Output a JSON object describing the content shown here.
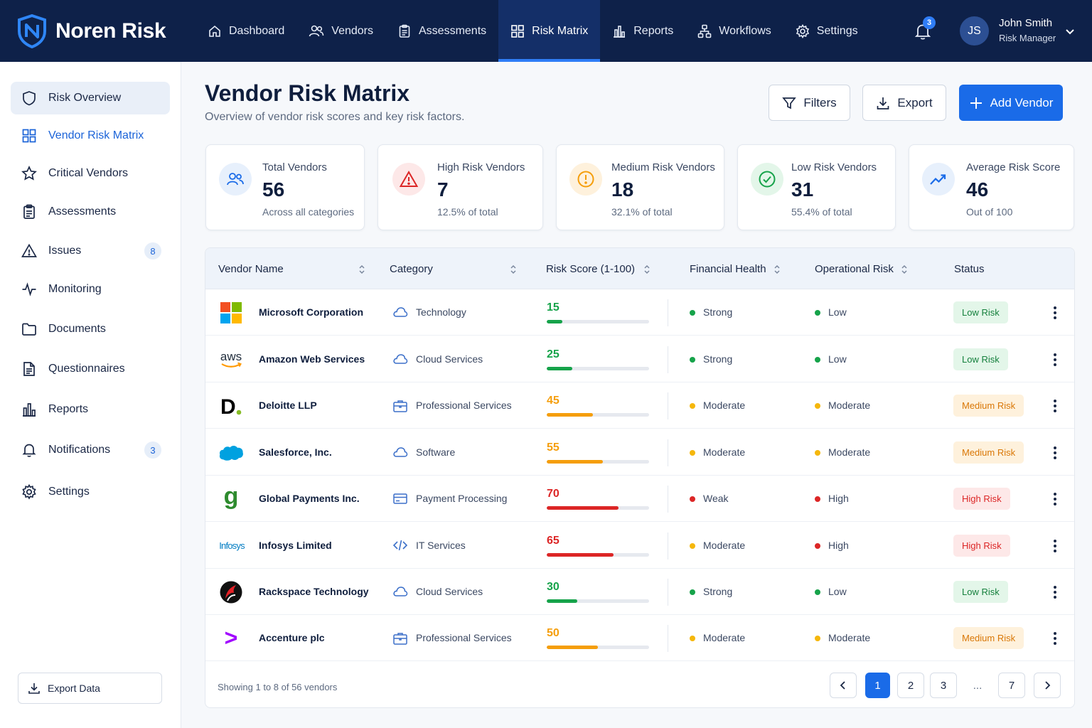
{
  "brand": {
    "name": "Noren Risk"
  },
  "nav": [
    {
      "label": "Dashboard",
      "icon": "home-icon"
    },
    {
      "label": "Vendors",
      "icon": "users-icon"
    },
    {
      "label": "Assessments",
      "icon": "clipboard-icon"
    },
    {
      "label": "Risk Matrix",
      "icon": "grid-icon",
      "active": true
    },
    {
      "label": "Reports",
      "icon": "bar-chart-icon"
    },
    {
      "label": "Workflows",
      "icon": "workflow-icon"
    },
    {
      "label": "Settings",
      "icon": "gear-icon"
    }
  ],
  "notifications": {
    "count": "3"
  },
  "user": {
    "initials": "JS",
    "name": "John Smith",
    "role": "Risk Manager"
  },
  "sidebar": {
    "items": [
      {
        "label": "Risk Overview",
        "icon": "shield-icon"
      },
      {
        "label": "Vendor Risk Matrix",
        "icon": "grid-icon"
      },
      {
        "label": "Critical Vendors",
        "icon": "star-icon"
      },
      {
        "label": "Assessments",
        "icon": "clipboard-icon"
      },
      {
        "label": "Issues",
        "icon": "warning-icon",
        "badge": "8"
      },
      {
        "label": "Monitoring",
        "icon": "activity-icon"
      },
      {
        "label": "Documents",
        "icon": "folder-icon"
      },
      {
        "label": "Questionnaires",
        "icon": "document-icon"
      },
      {
        "label": "Reports",
        "icon": "bar-chart-icon"
      },
      {
        "label": "Notifications",
        "icon": "bell-icon",
        "badge": "3"
      },
      {
        "label": "Settings",
        "icon": "gear-icon"
      }
    ],
    "export_label": "Export Data"
  },
  "page": {
    "title": "Vendor Risk Matrix",
    "subtitle": "Overview of vendor risk scores and key risk factors.",
    "filters_label": "Filters",
    "export_label": "Export",
    "add_label": "Add Vendor"
  },
  "stats": [
    {
      "label": "Total Vendors",
      "value": "56",
      "note": "Across all categories",
      "icon": "users-icon"
    },
    {
      "label": "High Risk Vendors",
      "value": "7",
      "note": "12.5% of total",
      "icon": "warning-icon"
    },
    {
      "label": "Medium Risk Vendors",
      "value": "18",
      "note": "32.1% of total",
      "icon": "alert-circle-icon"
    },
    {
      "label": "Low Risk Vendors",
      "value": "31",
      "note": "55.4% of total",
      "icon": "check-circle-icon"
    },
    {
      "label": "Average Risk Score",
      "value": "46",
      "note": "Out of 100",
      "icon": "trend-up-icon"
    }
  ],
  "table": {
    "columns": [
      "Vendor Name",
      "Category",
      "Risk Score (1-100)",
      "Financial Health",
      "Operational Risk",
      "Status"
    ],
    "rows": [
      {
        "name": "Microsoft Corporation",
        "logo": "microsoft-logo",
        "category": "Technology",
        "cat_icon": "cloud-icon",
        "score": "15",
        "financial": "Strong",
        "operational": "Low",
        "status": "Low Risk",
        "level": "low"
      },
      {
        "name": "Amazon Web Services",
        "logo": "aws-logo",
        "logo_text": "aws",
        "category": "Cloud Services",
        "cat_icon": "cloud-icon",
        "score": "25",
        "financial": "Strong",
        "operational": "Low",
        "status": "Low Risk",
        "level": "low"
      },
      {
        "name": "Deloitte LLP",
        "logo": "deloitte-logo",
        "logo_text": "D",
        "category": "Professional Services",
        "cat_icon": "briefcase-icon",
        "score": "45",
        "financial": "Moderate",
        "operational": "Moderate",
        "status": "Medium Risk",
        "level": "medium"
      },
      {
        "name": "Salesforce, Inc.",
        "logo": "salesforce-logo",
        "category": "Software",
        "cat_icon": "cloud-icon",
        "score": "55",
        "financial": "Moderate",
        "operational": "Moderate",
        "status": "Medium Risk",
        "level": "medium"
      },
      {
        "name": "Global Payments Inc.",
        "logo": "global-payments-logo",
        "logo_text": "g",
        "category": "Payment Processing",
        "cat_icon": "credit-card-icon",
        "score": "70",
        "financial": "Weak",
        "operational": "High",
        "status": "High Risk",
        "level": "high"
      },
      {
        "name": "Infosys Limited",
        "logo": "infosys-logo",
        "logo_text": "Infosys",
        "category": "IT Services",
        "cat_icon": "code-icon",
        "score": "65",
        "financial": "Moderate",
        "operational": "High",
        "status": "High Risk",
        "level": "high"
      },
      {
        "name": "Rackspace Technology",
        "logo": "rackspace-logo",
        "category": "Cloud Services",
        "cat_icon": "cloud-icon",
        "score": "30",
        "financial": "Strong",
        "operational": "Low",
        "status": "Low Risk",
        "level": "low"
      },
      {
        "name": "Accenture plc",
        "logo": "accenture-logo",
        "logo_text": ">",
        "category": "Professional Services",
        "cat_icon": "briefcase-icon",
        "score": "50",
        "financial": "Moderate",
        "operational": "Moderate",
        "status": "Medium Risk",
        "level": "medium"
      }
    ],
    "footer": "Showing 1 to 8 of 56 vendors",
    "pages": [
      "1",
      "2",
      "3",
      "...",
      "7"
    ]
  },
  "colors": {
    "navy": "#0e2149",
    "accent": "#1a6be8",
    "low": "#16a34a",
    "medium": "#f59e0b",
    "high": "#dc2626"
  }
}
